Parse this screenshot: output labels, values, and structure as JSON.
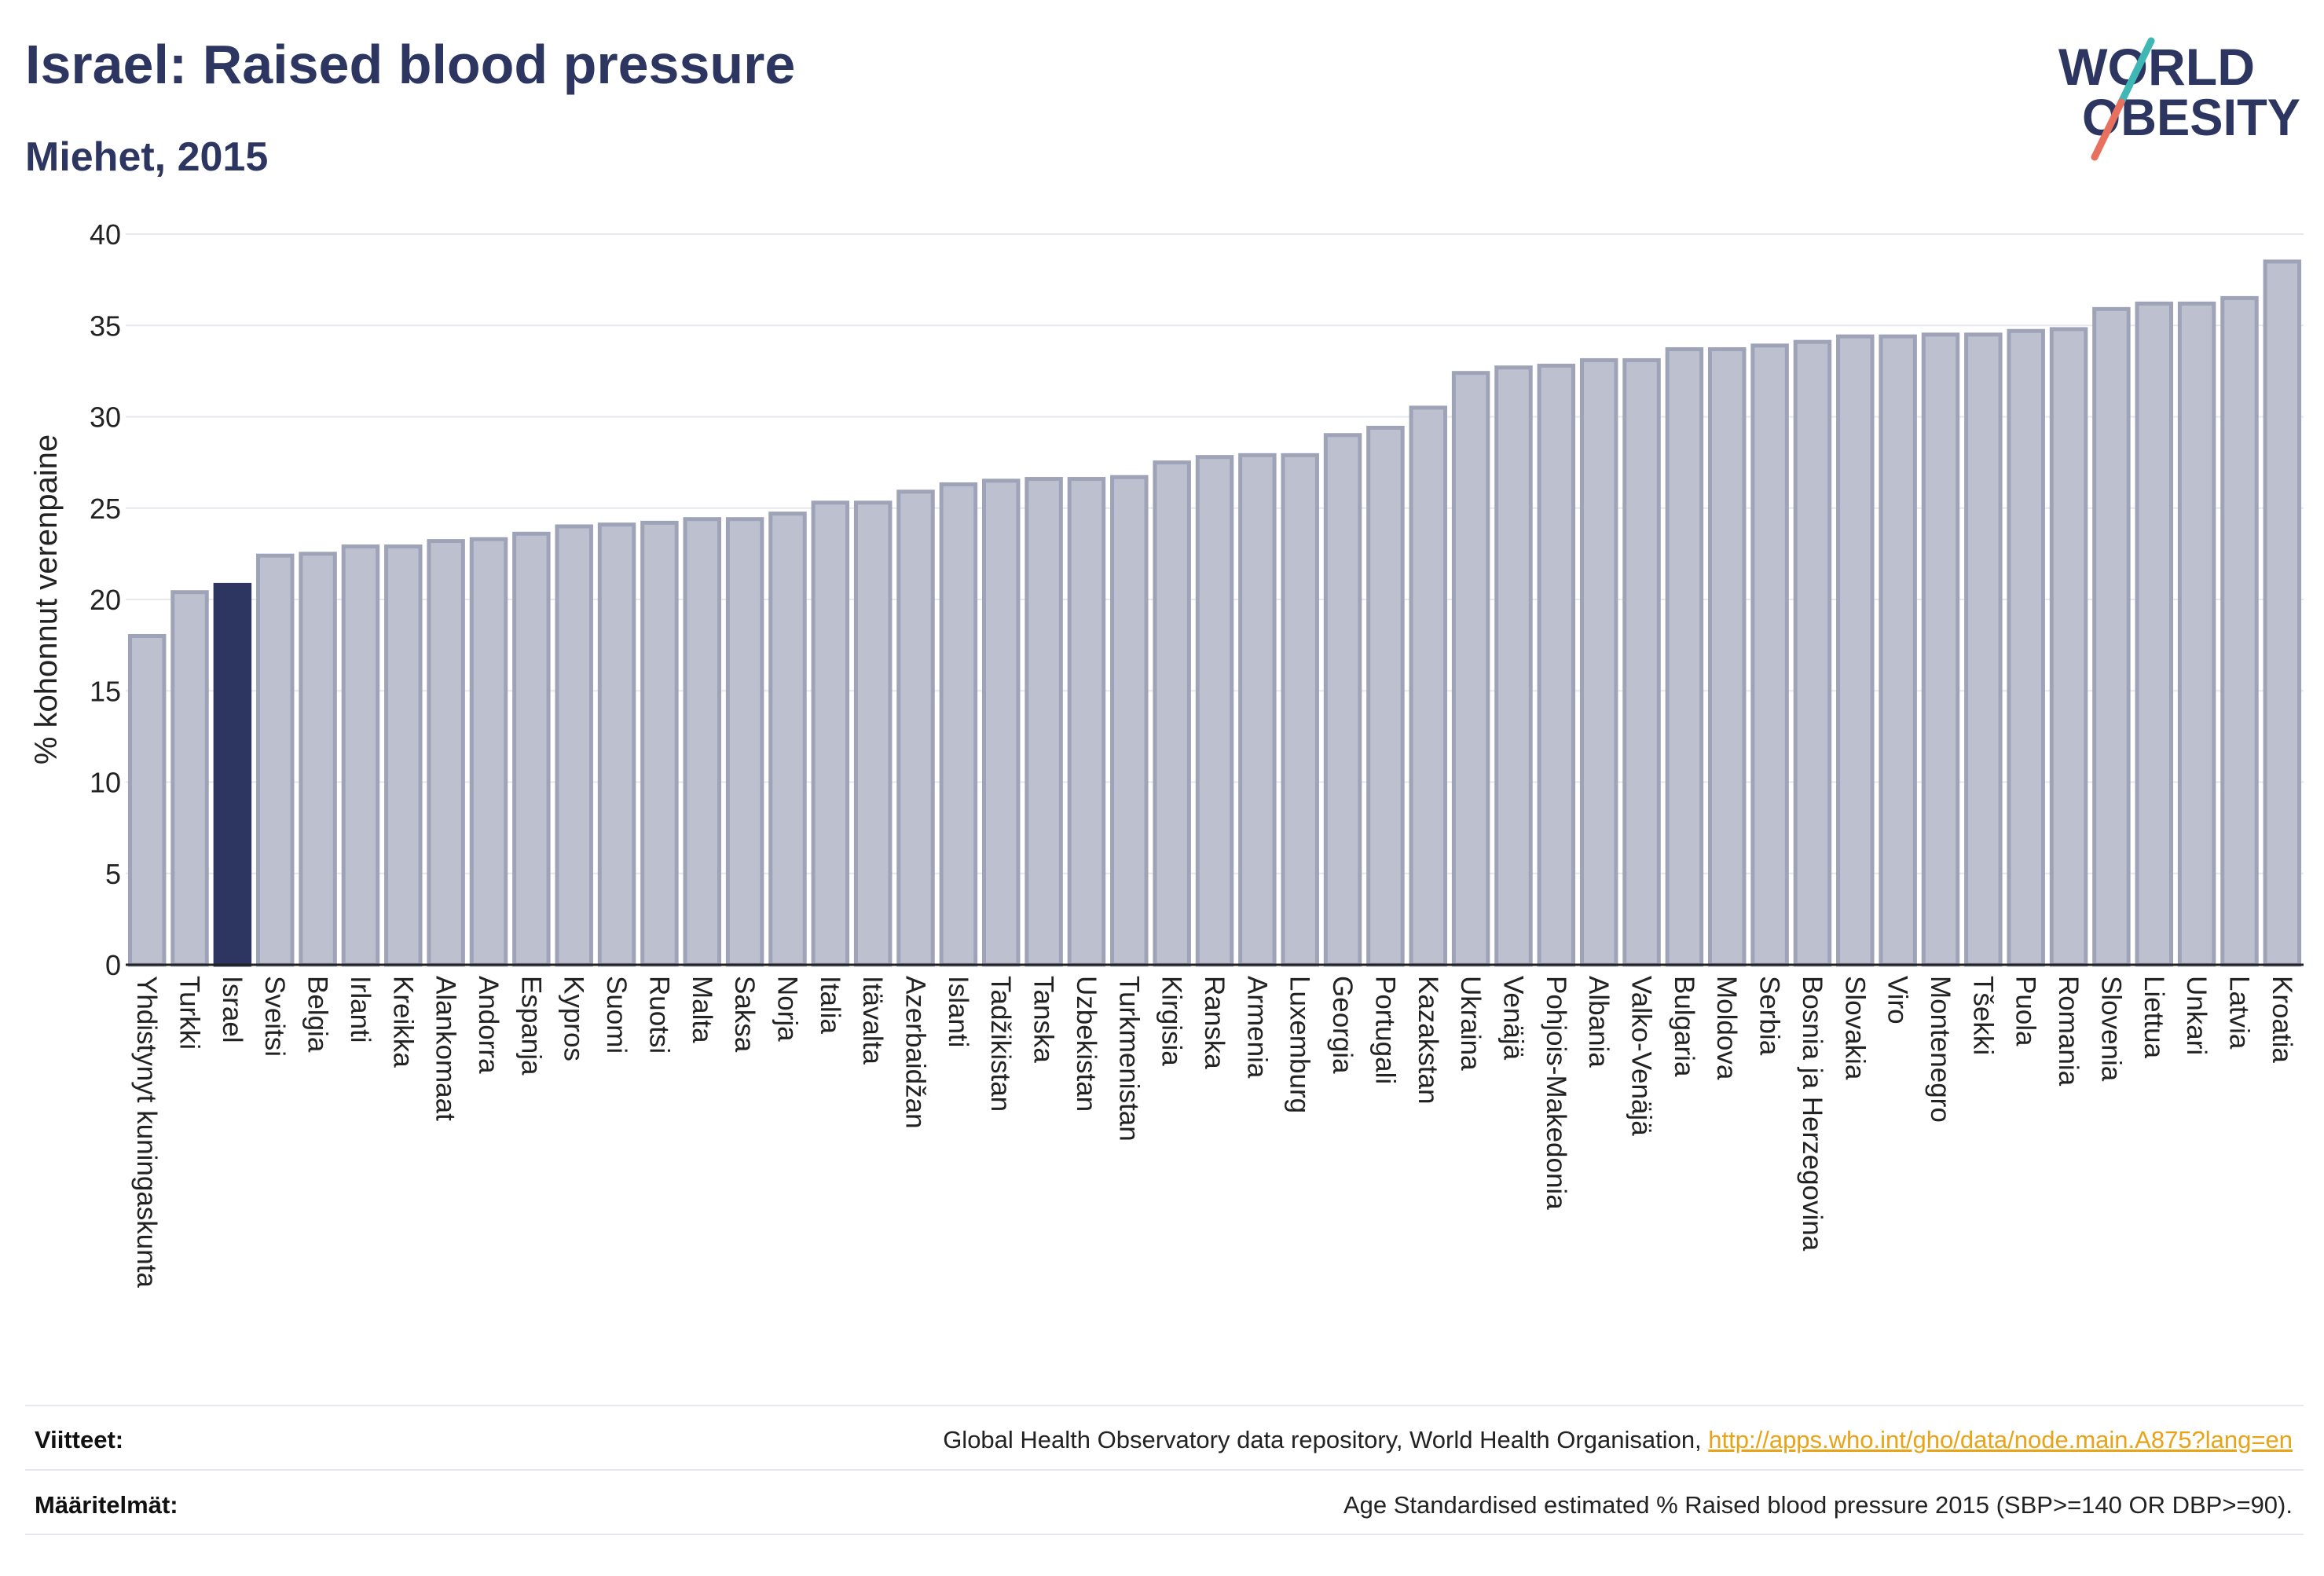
{
  "header": {
    "title": "Israel: Raised blood pressure",
    "subtitle": "Miehet, 2015"
  },
  "logo": {
    "line1": "WORLD",
    "line2": "OBESITY"
  },
  "footer": {
    "sources_label": "Viitteet:",
    "sources_text": "Global Health Observatory data repository, World Health Organisation, ",
    "sources_link": "http://apps.who.int/gho/data/node.main.A875?lang=en",
    "definitions_label": "Määritelmät:",
    "definitions_text": "Age Standardised estimated % Raised blood pressure 2015 (SBP>=140 OR DBP>=90)."
  },
  "colors": {
    "highlight": "#2d3561",
    "bar_fill": "#bcc0cf",
    "bar_stroke": "#9ea3b8",
    "logo_slash_top": "#3fb8b5",
    "logo_slash_bottom": "#e8705f"
  },
  "chart_data": {
    "type": "bar",
    "title": "Israel: Raised blood pressure",
    "subtitle": "Miehet, 2015",
    "ylabel": "% kohonnut verenpaine",
    "xlabel": "",
    "ylim": [
      0,
      40
    ],
    "yticks": [
      0,
      5,
      10,
      15,
      20,
      25,
      30,
      35,
      40
    ],
    "grid": true,
    "highlight": "Israel",
    "categories": [
      "Yhdistynyt kuningaskunta",
      "Turkki",
      "Israel",
      "Sveitsi",
      "Belgia",
      "Irlanti",
      "Kreikka",
      "Alankomaat",
      "Andorra",
      "Espanja",
      "Kypros",
      "Suomi",
      "Ruotsi",
      "Malta",
      "Saksa",
      "Norja",
      "Italia",
      "Itävalta",
      "Azerbaidžan",
      "Islanti",
      "Tadžikistan",
      "Tanska",
      "Uzbekistan",
      "Turkmenistan",
      "Kirgisia",
      "Ranska",
      "Armenia",
      "Luxemburg",
      "Georgia",
      "Portugali",
      "Kazakstan",
      "Ukraina",
      "Venäjä",
      "Pohjois-Makedonia",
      "Albania",
      "Valko-Venäjä",
      "Bulgaria",
      "Moldova",
      "Serbia",
      "Bosnia ja Herzegovina",
      "Slovakia",
      "Viro",
      "Montenegro",
      "Tšekki",
      "Puola",
      "Romania",
      "Slovenia",
      "Liettua",
      "Unkari",
      "Latvia",
      "Kroatia"
    ],
    "values": [
      18.0,
      20.4,
      20.8,
      22.4,
      22.5,
      22.9,
      22.9,
      23.2,
      23.3,
      23.6,
      24.0,
      24.1,
      24.2,
      24.4,
      24.4,
      24.7,
      25.3,
      25.3,
      25.9,
      26.3,
      26.5,
      26.6,
      26.6,
      26.7,
      27.5,
      27.8,
      27.9,
      27.9,
      29.0,
      29.4,
      30.5,
      32.4,
      32.7,
      32.8,
      33.1,
      33.1,
      33.7,
      33.7,
      33.9,
      34.1,
      34.4,
      34.4,
      34.5,
      34.5,
      34.7,
      34.8,
      35.9,
      36.2,
      36.2,
      36.5,
      38.5
    ]
  }
}
